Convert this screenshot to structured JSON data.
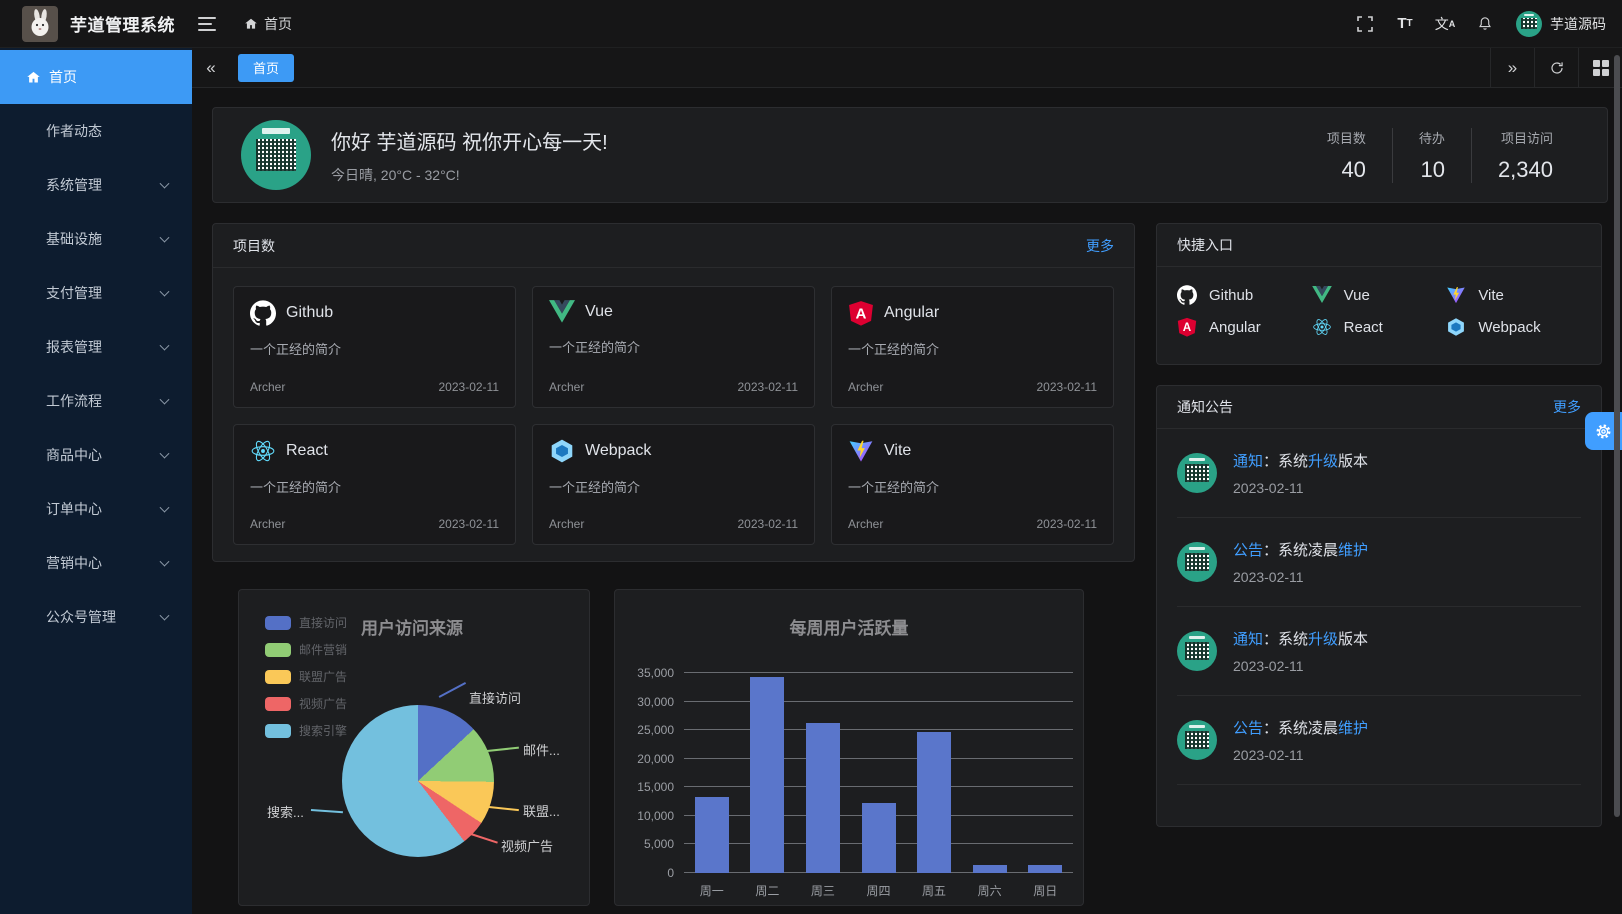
{
  "app": {
    "title": "芋道管理系统",
    "accent_color": "#409eff",
    "sidebar_color": "#0d1c2f"
  },
  "header": {
    "breadcrumb": "首页",
    "user_name": "芋道源码",
    "icons": [
      "hamburger-icon",
      "home-icon",
      "fullscreen-icon",
      "font-size-icon",
      "translate-icon",
      "bell-icon",
      "avatar"
    ]
  },
  "sidebar": {
    "items": [
      {
        "label": "首页",
        "active": true
      },
      {
        "label": "作者动态"
      },
      {
        "label": "系统管理",
        "expandable": true
      },
      {
        "label": "基础设施",
        "expandable": true
      },
      {
        "label": "支付管理",
        "expandable": true
      },
      {
        "label": "报表管理",
        "expandable": true
      },
      {
        "label": "工作流程",
        "expandable": true
      },
      {
        "label": "商品中心",
        "expandable": true
      },
      {
        "label": "订单中心",
        "expandable": true
      },
      {
        "label": "营销中心",
        "expandable": true
      },
      {
        "label": "公众号管理",
        "expandable": true
      }
    ]
  },
  "tabbar": {
    "collapse_glyph": "«",
    "expand_glyph": "»",
    "tabs": [
      {
        "label": "首页",
        "active": true
      }
    ]
  },
  "welcome": {
    "greeting": "你好 芋道源码 祝你开心每一天!",
    "weather": "今日晴, 20°C - 32°C!",
    "stats": [
      {
        "label": "项目数",
        "value": "40"
      },
      {
        "label": "待办",
        "value": "10"
      },
      {
        "label": "项目访问",
        "value": "2,340"
      }
    ]
  },
  "projects": {
    "title": "项目数",
    "more": "更多",
    "items": [
      {
        "name": "Github",
        "desc": "一个正经的简介",
        "author": "Archer",
        "date": "2023-02-11"
      },
      {
        "name": "Vue",
        "desc": "一个正经的简介",
        "author": "Archer",
        "date": "2023-02-11"
      },
      {
        "name": "Angular",
        "desc": "一个正经的简介",
        "author": "Archer",
        "date": "2023-02-11"
      },
      {
        "name": "React",
        "desc": "一个正经的简介",
        "author": "Archer",
        "date": "2023-02-11"
      },
      {
        "name": "Webpack",
        "desc": "一个正经的简介",
        "author": "Archer",
        "date": "2023-02-11"
      },
      {
        "name": "Vite",
        "desc": "一个正经的简介",
        "author": "Archer",
        "date": "2023-02-11"
      }
    ]
  },
  "shortcuts": {
    "title": "快捷入口",
    "items": [
      "Github",
      "Vue",
      "Vite",
      "Angular",
      "React",
      "Webpack"
    ]
  },
  "notices": {
    "title": "通知公告",
    "more": "更多",
    "items": [
      {
        "tag": "通知",
        "mid": "：系统",
        "keyword": "升级",
        "tail": "版本",
        "date": "2023-02-11"
      },
      {
        "tag": "公告",
        "mid": "：系统凌晨",
        "keyword": "维护",
        "tail": "",
        "date": "2023-02-11"
      },
      {
        "tag": "通知",
        "mid": "：系统",
        "keyword": "升级",
        "tail": "版本",
        "date": "2023-02-11"
      },
      {
        "tag": "公告",
        "mid": "：系统凌晨",
        "keyword": "维护",
        "tail": "",
        "date": "2023-02-11"
      }
    ]
  },
  "chart_data": [
    {
      "type": "pie",
      "title": "用户访问来源",
      "labels": [
        "直接访问",
        "邮件营销",
        "联盟广告",
        "视频广告",
        "搜索引擎"
      ],
      "values": [
        335,
        310,
        234,
        135,
        1548
      ],
      "colors": [
        "#5470c6",
        "#91cc75",
        "#fac858",
        "#ee6666",
        "#73c0de"
      ],
      "callout_labels": [
        "直接访问",
        "邮件...",
        "联盟...",
        "视频广告",
        "搜索..."
      ],
      "legend_position": "top-left"
    },
    {
      "type": "bar",
      "title": "每周用户活跃量",
      "categories": [
        "周一",
        "周二",
        "周三",
        "周四",
        "周五",
        "周六",
        "周日"
      ],
      "values": [
        13253,
        34235,
        26321,
        12340,
        24643,
        1322,
        1324
      ],
      "ylim": [
        0,
        35000
      ],
      "yticks": [
        0,
        5000,
        10000,
        15000,
        20000,
        25000,
        30000,
        35000
      ],
      "bar_color": "#5a76cb",
      "grid": true
    }
  ]
}
